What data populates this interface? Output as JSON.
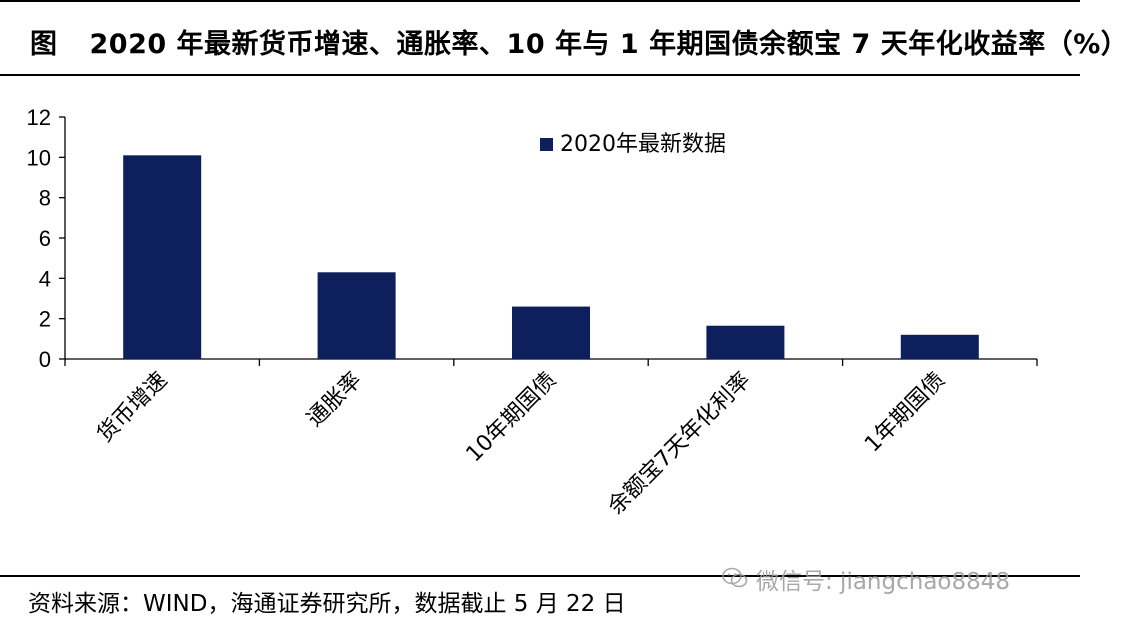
{
  "header": {
    "label": "图",
    "title": "2020 年最新货币增速、通胀率、10 年与 1 年期国债余额宝 7 天年化收益率（%）"
  },
  "chart_data": {
    "type": "bar",
    "categories": [
      "货币增速",
      "通胀率",
      "10年期国债",
      "余额宝7天年化利率",
      "1年期国债"
    ],
    "series": [
      {
        "name": "2020年最新数据",
        "values": [
          10.1,
          4.3,
          2.6,
          1.65,
          1.2
        ]
      }
    ],
    "ylim": [
      0,
      12
    ],
    "yticks": [
      0,
      2,
      4,
      6,
      8,
      10,
      12
    ],
    "bar_color": "#0d1f5c",
    "legend_position": "top-center"
  },
  "footer": {
    "source": "资料来源：WIND，海通证券研究所，数据截止 5 月 22 日"
  },
  "watermark": {
    "text": "微信号: jiangchao8848",
    "icon": "wechat-icon"
  }
}
